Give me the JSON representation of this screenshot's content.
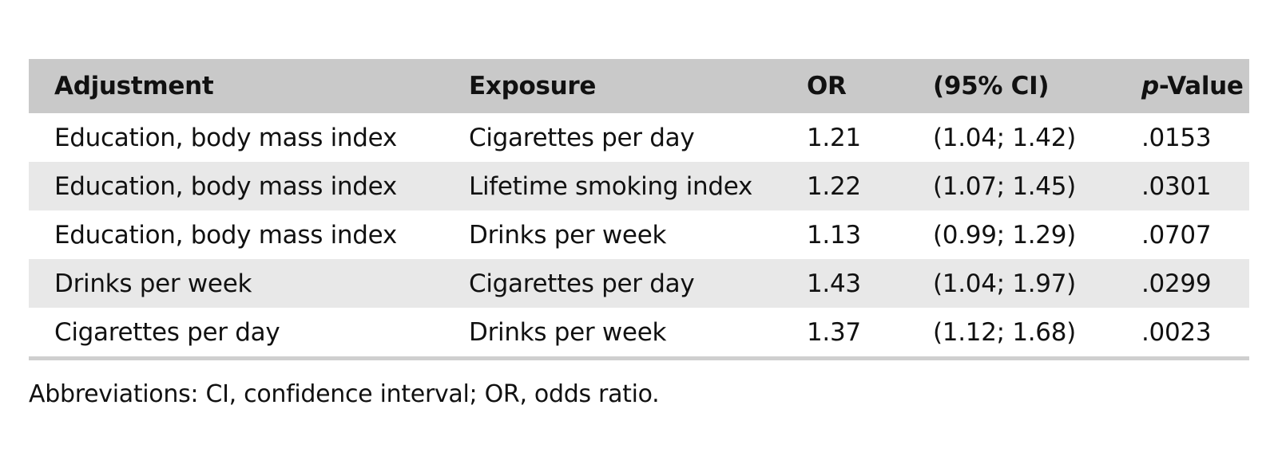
{
  "table": {
    "headers": {
      "adjustment": "Adjustment",
      "exposure": "Exposure",
      "or": "OR",
      "ci": "(95% CI)",
      "p_prefix": "p",
      "p_suffix": "-Value"
    },
    "rows": [
      {
        "adjustment": "Education, body mass index",
        "exposure": "Cigarettes per day",
        "or": "1.21",
        "ci": "(1.04; 1.42)",
        "p": ".0153"
      },
      {
        "adjustment": "Education, body mass index",
        "exposure": "Lifetime smoking index",
        "or": "1.22",
        "ci": "(1.07; 1.45)",
        "p": ".0301"
      },
      {
        "adjustment": "Education, body mass index",
        "exposure": "Drinks per week",
        "or": "1.13",
        "ci": "(0.99; 1.29)",
        "p": ".0707"
      },
      {
        "adjustment": "Drinks per week",
        "exposure": "Cigarettes per day",
        "or": "1.43",
        "ci": "(1.04; 1.97)",
        "p": ".0299"
      },
      {
        "adjustment": "Cigarettes per day",
        "exposure": "Drinks per week",
        "or": "1.37",
        "ci": "(1.12; 1.68)",
        "p": ".0023"
      }
    ],
    "footnote": "Abbreviations: CI, confidence interval; OR, odds ratio.",
    "colors": {
      "header_bg": "#c9c9c9",
      "shaded_row_bg": "#e8e8e8",
      "rule": "#cfcfcf"
    }
  }
}
